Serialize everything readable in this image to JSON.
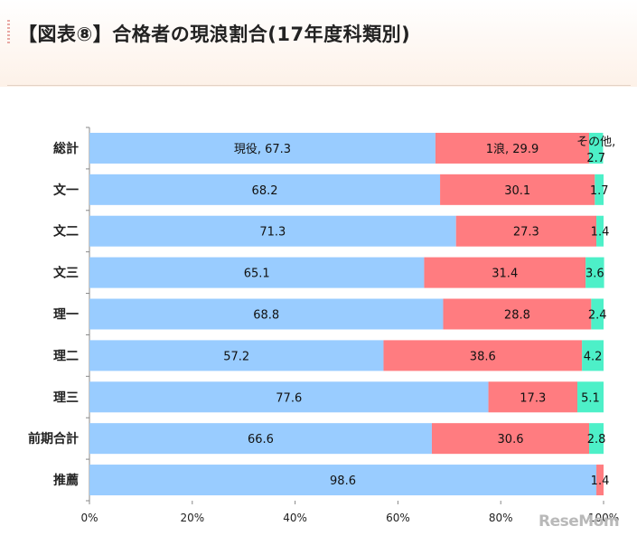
{
  "title": "【図表⑧】合格者の現浪割合(17年度科類別)",
  "watermark": "ReseMom",
  "chart_data": {
    "type": "bar",
    "orientation": "horizontal",
    "stacked": "percent",
    "categories": [
      "総計",
      "文一",
      "文二",
      "文三",
      "理一",
      "理二",
      "理三",
      "前期合計",
      "推薦"
    ],
    "series": [
      {
        "name": "現役",
        "color": "#99ccff",
        "values": [
          67.3,
          68.2,
          71.3,
          65.1,
          68.8,
          57.2,
          77.6,
          66.6,
          98.6
        ]
      },
      {
        "name": "1浪",
        "color": "#ff7c80",
        "values": [
          29.9,
          30.1,
          27.3,
          31.4,
          28.8,
          38.6,
          17.3,
          30.6,
          1.4
        ]
      },
      {
        "name": "その他",
        "color": "#4df0c8",
        "values": [
          2.7,
          1.7,
          1.4,
          3.6,
          2.4,
          4.2,
          5.1,
          2.8,
          0
        ]
      }
    ],
    "data_labels": [
      [
        "現役, 67.3",
        "1浪, 29.9",
        "その他,|2.7"
      ],
      [
        "68.2",
        "30.1",
        "1.7"
      ],
      [
        "71.3",
        "27.3",
        "1.4"
      ],
      [
        "65.1",
        "31.4",
        "3.6"
      ],
      [
        "68.8",
        "28.8",
        "2.4"
      ],
      [
        "57.2",
        "38.6",
        "4.2"
      ],
      [
        "77.6",
        "17.3",
        "5.1"
      ],
      [
        "66.6",
        "30.6",
        "2.8"
      ],
      [
        "98.6",
        "1.4",
        ""
      ]
    ],
    "x_ticks": [
      "0%",
      "20%",
      "40%",
      "60%",
      "80%",
      "100%"
    ],
    "xlim": [
      0,
      100
    ],
    "grid": false,
    "legend": "none"
  }
}
